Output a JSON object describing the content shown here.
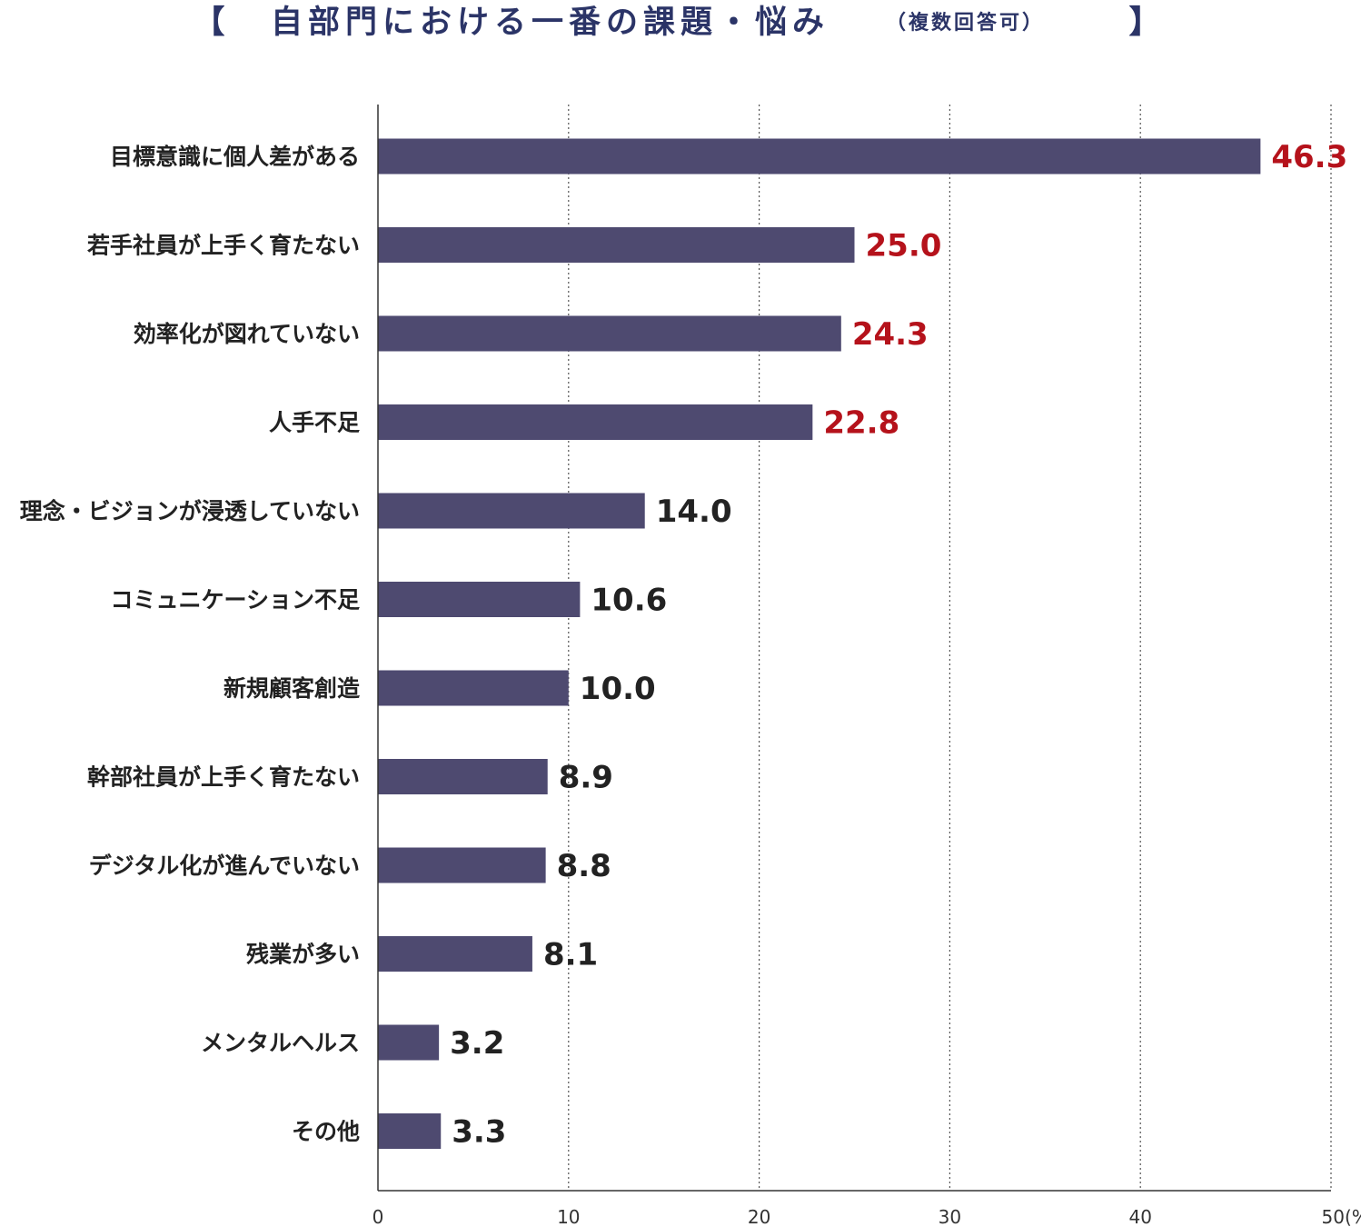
{
  "chart_data": {
    "type": "bar",
    "orientation": "horizontal",
    "title_open_bracket": "【",
    "title": "自部門における一番の課題・悩み",
    "subtitle": "（複数回答可）",
    "title_close_bracket": "】",
    "categories": [
      "目標意識に個人差がある",
      "若手社員が上手く育たない",
      "効率化が図れていない",
      "人手不足",
      "理念・ビジョンが浸透していない",
      "コミュニケーション不足",
      "新規顧客創造",
      "幹部社員が上手く育たない",
      "デジタル化が進んでいない",
      "残業が多い",
      "メンタルヘルス",
      "その他"
    ],
    "values": [
      46.3,
      25.0,
      24.3,
      22.8,
      14.0,
      10.6,
      10.0,
      8.9,
      8.8,
      8.1,
      3.2,
      3.3
    ],
    "value_labels": [
      "46.3",
      "25.0",
      "24.3",
      "22.8",
      "14.0",
      "10.6",
      "10.0",
      "8.9",
      "8.8",
      "8.1",
      "3.2",
      "3.3"
    ],
    "highlight_top_n": 4,
    "xlim": [
      0,
      50
    ],
    "xticks": [
      0,
      10,
      20,
      30,
      40,
      50
    ],
    "xtick_labels": [
      "0",
      "10",
      "20",
      "30",
      "40",
      "50"
    ],
    "unit_label": "(%)",
    "grid": "vertical-dotted",
    "colors": {
      "bar": "#4e4a70",
      "highlight_value": "#b5121b",
      "normal_value": "#222222",
      "title": "#2b3467",
      "axis": "#333333",
      "grid": "#555555"
    }
  }
}
